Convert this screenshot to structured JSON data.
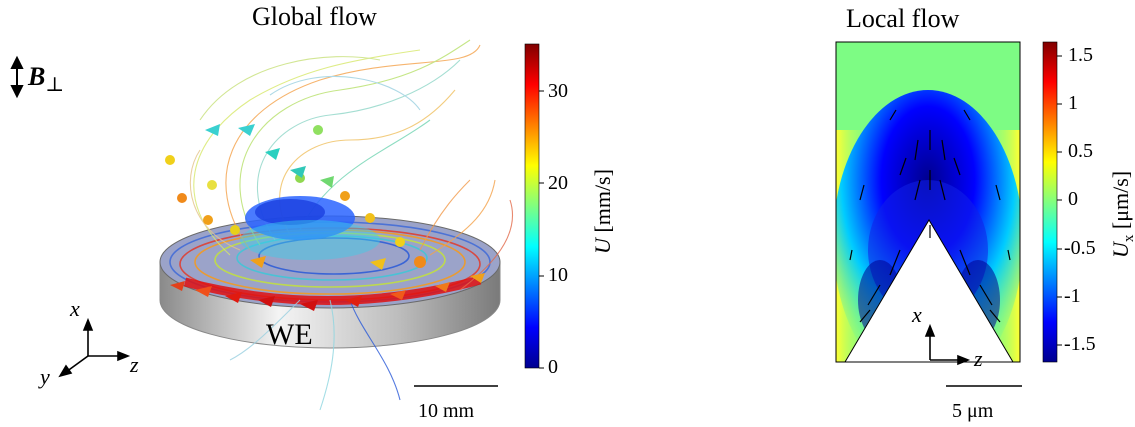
{
  "left_panel": {
    "title": "Global flow",
    "field_label": "B",
    "field_sub": "⊥",
    "electrode_label": "WE",
    "scale_bar": "10 mm",
    "axes": {
      "x": "x",
      "y": "y",
      "z": "z"
    },
    "colorbar": {
      "label_var": "U",
      "label_unit": " [mm/s]",
      "ticks": [
        "30",
        "20",
        "10",
        "0"
      ],
      "range": [
        0,
        35
      ]
    }
  },
  "right_panel": {
    "title": "Local flow",
    "scale_bar": "5 μm",
    "axes": {
      "x": "x",
      "z": "z"
    },
    "colorbar": {
      "label_var": "U",
      "label_sub": "x",
      "label_unit": " [μm/s]",
      "ticks": [
        "1.5",
        "1",
        "0.5",
        "0",
        "-0.5",
        "-1",
        "-1.5"
      ],
      "range": [
        -1.65,
        1.65
      ]
    }
  },
  "colors": {
    "jet_low": "#00008f",
    "jet_mid": "#80ff80",
    "jet_high": "#800000",
    "electrode": "#c8c8c8"
  }
}
